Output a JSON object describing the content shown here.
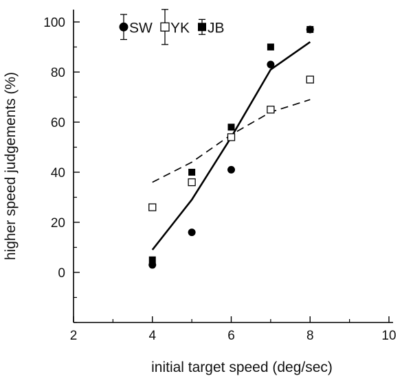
{
  "chart_data": {
    "type": "scatter",
    "xlabel": "initial target speed (deg/sec)",
    "ylabel": "higher speed judgements (%)",
    "xlim": [
      2,
      10
    ],
    "ylim": [
      -20,
      105
    ],
    "x_ticks": [
      2,
      4,
      6,
      8,
      10
    ],
    "y_ticks": [
      0,
      20,
      40,
      60,
      80,
      100
    ],
    "x_minor_ticks": [
      3,
      5,
      7,
      9
    ],
    "y_minor_ticks": [
      -20,
      -10,
      10,
      30,
      50,
      70,
      90
    ],
    "grid": false,
    "legend_position": "top-left",
    "series": [
      {
        "name": "SW",
        "marker": "filled-circle",
        "points": [
          [
            4,
            3
          ],
          [
            5,
            16
          ],
          [
            6,
            41
          ],
          [
            7,
            83
          ],
          [
            8,
            97
          ]
        ]
      },
      {
        "name": "YK",
        "marker": "open-square",
        "points": [
          [
            4,
            26
          ],
          [
            5,
            36
          ],
          [
            6,
            54
          ],
          [
            7,
            65
          ],
          [
            8,
            77
          ]
        ]
      },
      {
        "name": "JB",
        "marker": "filled-square",
        "points": [
          [
            4,
            5
          ],
          [
            5,
            40
          ],
          [
            6,
            58
          ],
          [
            7,
            90
          ],
          [
            8,
            97
          ]
        ]
      }
    ],
    "fits": [
      {
        "style": "solid",
        "points": [
          [
            4,
            9
          ],
          [
            5,
            29
          ],
          [
            6,
            54
          ],
          [
            7,
            81
          ],
          [
            8,
            92
          ]
        ]
      },
      {
        "style": "dashed",
        "points": [
          [
            4,
            36
          ],
          [
            5,
            44
          ],
          [
            6,
            55
          ],
          [
            7,
            64
          ],
          [
            8,
            69
          ]
        ]
      }
    ],
    "legend_error_bars": [
      {
        "series": "SW",
        "value": 98,
        "low": 93,
        "high": 103
      },
      {
        "series": "YK",
        "value": 98,
        "low": 91,
        "high": 105
      },
      {
        "series": "JB",
        "value": 98,
        "low": 95,
        "high": 101
      }
    ]
  }
}
